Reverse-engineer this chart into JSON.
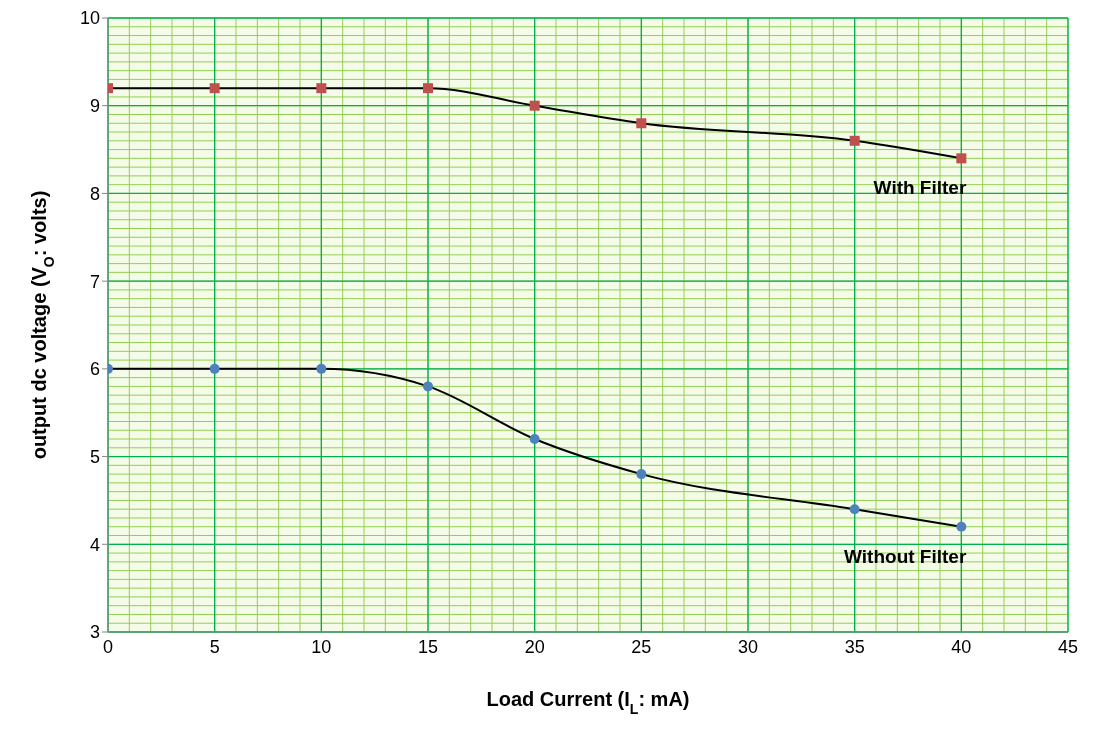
{
  "chart_data": {
    "type": "line",
    "xlabel": "Load Current (I$_{L}$: mA)",
    "ylabel": "output dc voltage (V$_{O}$: volts)",
    "x": [
      0,
      5,
      10,
      15,
      20,
      25,
      35,
      40
    ],
    "series": [
      {
        "name": "With Filter",
        "color": "#c0504d",
        "marker": "square",
        "values": [
          9.2,
          9.2,
          9.2,
          9.2,
          9.0,
          8.8,
          8.6,
          8.4
        ]
      },
      {
        "name": "Without Filter",
        "color": "#4f81bd",
        "marker": "circle",
        "values": [
          6,
          6,
          6,
          5.8,
          5.2,
          4.8,
          4.4,
          4.2
        ]
      }
    ],
    "xlim": [
      0,
      45
    ],
    "xticks": [
      0,
      5,
      10,
      15,
      20,
      25,
      30,
      35,
      40,
      45
    ],
    "ylim": [
      3,
      10
    ],
    "yticks": [
      3,
      4,
      5,
      6,
      7,
      8,
      9,
      10
    ],
    "grid": true,
    "line_style": "solid"
  }
}
